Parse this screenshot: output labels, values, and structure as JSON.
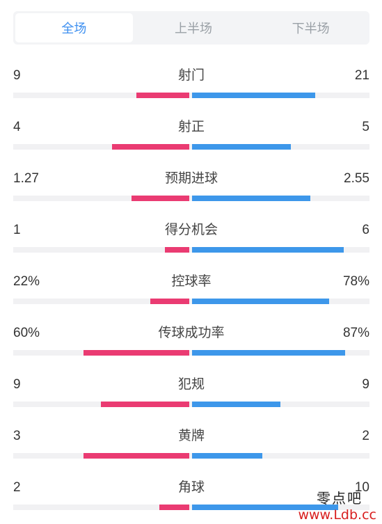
{
  "tabs": [
    {
      "label": "全场",
      "active": true
    },
    {
      "label": "上半场",
      "active": false
    },
    {
      "label": "下半场",
      "active": false
    }
  ],
  "colors": {
    "home": "#ea3b72",
    "away": "#3d97ea",
    "accent": "#3d8ff0"
  },
  "stats": [
    {
      "label": "射门",
      "home": "9",
      "away": "21",
      "home_fraction": 0.3,
      "away_fraction": 0.7
    },
    {
      "label": "射正",
      "home": "4",
      "away": "5",
      "home_fraction": 0.44,
      "away_fraction": 0.56
    },
    {
      "label": "预期进球",
      "home": "1.27",
      "away": "2.55",
      "home_fraction": 0.33,
      "away_fraction": 0.67
    },
    {
      "label": "得分机会",
      "home": "1",
      "away": "6",
      "home_fraction": 0.14,
      "away_fraction": 0.86
    },
    {
      "label": "控球率",
      "home": "22%",
      "away": "78%",
      "home_fraction": 0.22,
      "away_fraction": 0.78
    },
    {
      "label": "传球成功率",
      "home": "60%",
      "away": "87%",
      "home_fraction": 0.6,
      "away_fraction": 0.87
    },
    {
      "label": "犯规",
      "home": "9",
      "away": "9",
      "home_fraction": 0.5,
      "away_fraction": 0.5
    },
    {
      "label": "黄牌",
      "home": "3",
      "away": "2",
      "home_fraction": 0.6,
      "away_fraction": 0.4
    },
    {
      "label": "角球",
      "home": "2",
      "away": "10",
      "home_fraction": 0.17,
      "away_fraction": 0.83
    }
  ],
  "watermark": {
    "name": "零点吧",
    "url": "www.Ldb.cc"
  }
}
